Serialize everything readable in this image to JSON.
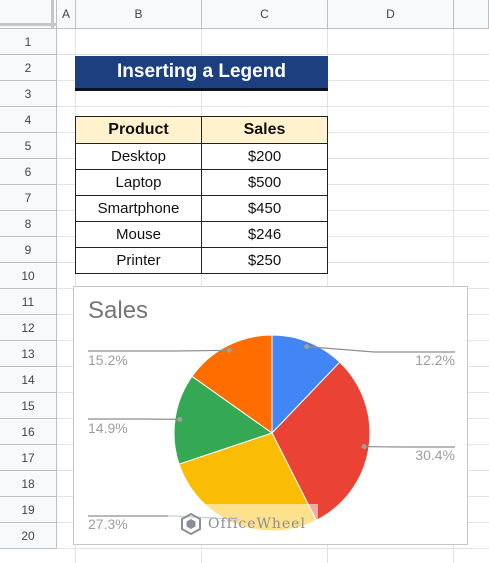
{
  "columns": [
    "A",
    "B",
    "C",
    "D"
  ],
  "rows": [
    "1",
    "2",
    "3",
    "4",
    "5",
    "6",
    "7",
    "8",
    "9",
    "10",
    "11",
    "12",
    "13",
    "14",
    "15",
    "16",
    "17",
    "18",
    "19",
    "20"
  ],
  "sheet_title": "Inserting a Legend",
  "table": {
    "headers": [
      "Product",
      "Sales"
    ],
    "rows": [
      [
        "Desktop",
        "$200"
      ],
      [
        "Laptop",
        "$500"
      ],
      [
        "Smartphone",
        "$450"
      ],
      [
        "Mouse",
        "$246"
      ],
      [
        "Printer",
        "$250"
      ]
    ]
  },
  "chart_data": {
    "type": "pie",
    "title": "Sales",
    "categories": [
      "Desktop",
      "Laptop",
      "Smartphone",
      "Mouse",
      "Printer"
    ],
    "values": [
      200,
      500,
      450,
      246,
      250
    ],
    "percent_labels": [
      "12.2%",
      "30.4%",
      "27.3%",
      "14.9%",
      "15.2%"
    ],
    "colors": [
      "#4285f4",
      "#ea4335",
      "#fbbc04",
      "#34a853",
      "#ff6d01"
    ],
    "legend": "none",
    "label_color": "#9e9e9e"
  },
  "watermark": {
    "text": "OfficeWheel"
  }
}
